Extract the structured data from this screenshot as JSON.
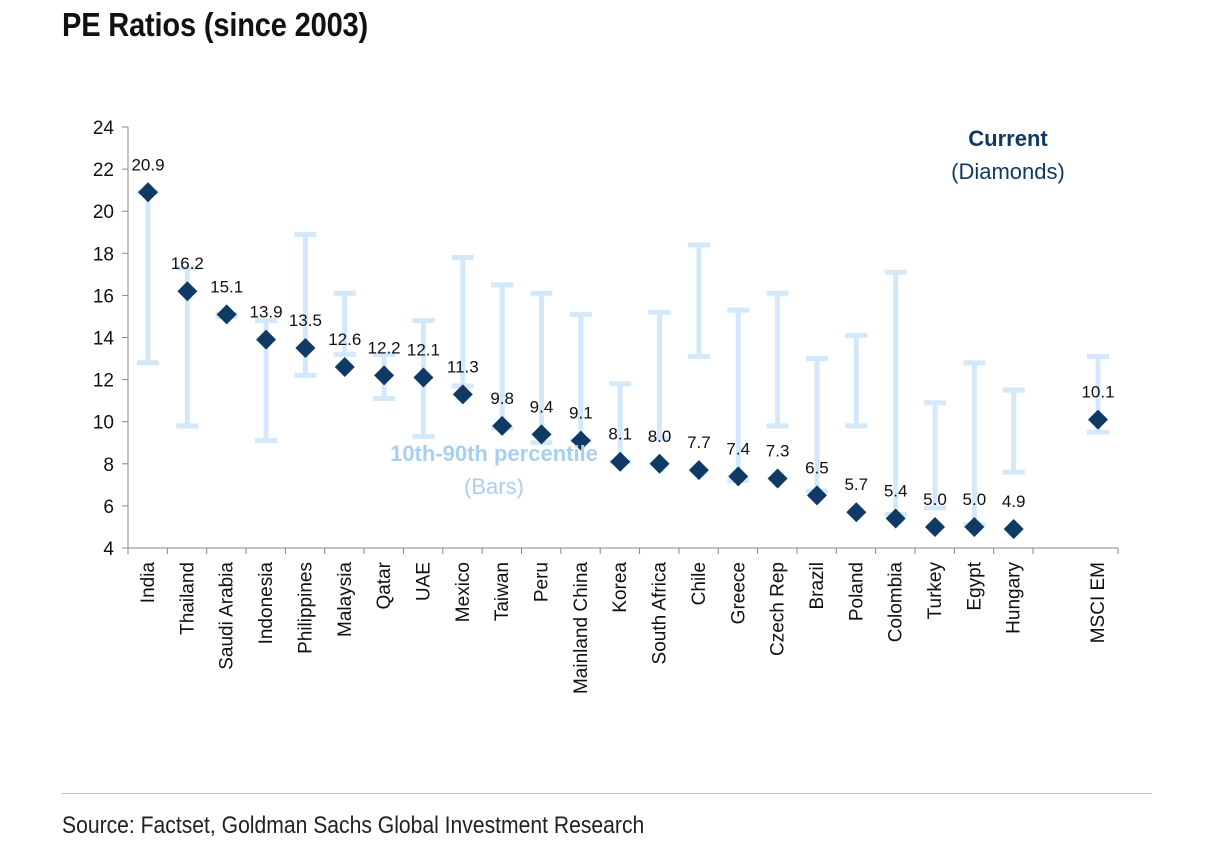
{
  "title": "PE Ratios (since 2003)",
  "source": "Source: Factset, Goldman Sachs Global Investment Research",
  "colors": {
    "diamond": "#0f3a64",
    "bar": "#d3e8fa",
    "current_text": "#0f3a64",
    "percentile_text": "#a8cff0",
    "axis": "#888888"
  },
  "annotations": {
    "current_title": "Current",
    "current_sub": "(Diamonds)",
    "percentile_title": "10th-90th percentile",
    "percentile_sub": "(Bars)"
  },
  "chart_data": {
    "type": "scatter",
    "title": "PE Ratios (since 2003)",
    "ylim": [
      4,
      24
    ],
    "yticks": [
      4,
      6,
      8,
      10,
      12,
      14,
      16,
      18,
      20,
      22,
      24
    ],
    "grid": false,
    "categories": [
      "India",
      "Thailand",
      "Saudi Arabia",
      "Indonesia",
      "Philippines",
      "Malaysia",
      "Qatar",
      "UAE",
      "Mexico",
      "Taiwan",
      "Peru",
      "Mainland China",
      "Korea",
      "South Africa",
      "Chile",
      "Greece",
      "Czech Rep",
      "Brazil",
      "Poland",
      "Colombia",
      "Turkey",
      "Egypt",
      "Hungary",
      "MSCI EM"
    ],
    "series": [
      {
        "name": "Current",
        "marker": "diamond",
        "values": [
          20.9,
          16.2,
          15.1,
          13.9,
          13.5,
          12.6,
          12.2,
          12.1,
          11.3,
          9.8,
          9.4,
          9.1,
          8.1,
          8.0,
          7.7,
          7.4,
          7.3,
          6.5,
          5.7,
          5.4,
          5.0,
          5.0,
          4.9,
          10.1
        ],
        "labels": [
          "20.9",
          "16.2",
          "15.1",
          "13.9",
          "13.5",
          "12.6",
          "12.2",
          "12.1",
          "11.3",
          "9.8",
          "9.4",
          "9.1",
          "8.1",
          "8.0",
          "7.7",
          "7.4",
          "7.3",
          "6.5",
          "5.7",
          "5.4",
          "5.0",
          "5.0",
          "4.9",
          "10.1"
        ]
      },
      {
        "name": "10th-90th percentile",
        "marker": "error-bar",
        "low": [
          12.8,
          9.8,
          15.0,
          9.1,
          12.2,
          13.2,
          11.1,
          9.3,
          11.7,
          9.7,
          9.0,
          9.1,
          8.1,
          9.2,
          13.1,
          7.2,
          9.8,
          6.7,
          9.8,
          5.6,
          5.9,
          5.1,
          7.6,
          9.5
        ],
        "high": [
          20.9,
          17.3,
          15.1,
          14.8,
          18.9,
          16.1,
          13.2,
          14.8,
          17.8,
          16.5,
          16.1,
          15.1,
          11.8,
          15.2,
          18.4,
          15.3,
          16.1,
          13.0,
          14.1,
          17.1,
          10.9,
          12.8,
          11.5,
          13.1
        ]
      }
    ]
  }
}
